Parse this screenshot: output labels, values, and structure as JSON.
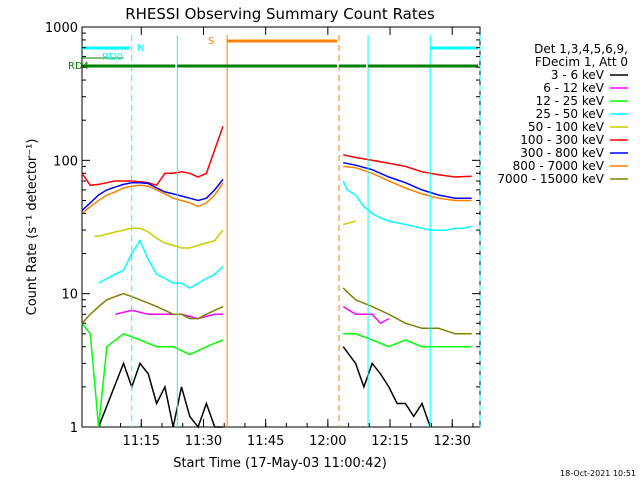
{
  "chart_data": {
    "type": "line",
    "title": "RHESSI Observing Summary Count Rates",
    "xlabel": "Start Time (17-May-03 11:00:42)",
    "ylabel": "Count Rate (s⁻¹ detector⁻¹)",
    "yscale": "log",
    "ylim": [
      1,
      1000
    ],
    "y_ticks": [
      "1",
      "10",
      "100",
      "1000"
    ],
    "xlim_minutes": [
      0,
      96
    ],
    "x_ticks": [
      "11:15",
      "11:30",
      "11:45",
      "12:00",
      "12:15",
      "12:30"
    ],
    "legend_header": [
      "Det 1,3,4,5,6,9,",
      "FDecim 1, Att 0"
    ],
    "legend_position": "right",
    "footer_date": "18-Oct-2021 10:51",
    "data_gap_minutes": [
      34.5,
      62.5
    ],
    "series": [
      {
        "name": "3 - 6 keV",
        "color": "#000000",
        "minutes": [
          4,
          10,
          12,
          14,
          16,
          18,
          20,
          22,
          24,
          26,
          28,
          30,
          32,
          34,
          63,
          66,
          68,
          70,
          72,
          74,
          76,
          78,
          80,
          82,
          84
        ],
        "values": [
          1,
          3,
          2,
          3,
          2.5,
          1.5,
          2,
          1,
          2,
          1.2,
          1,
          1.5,
          1,
          1,
          4,
          3,
          2,
          3,
          2.5,
          2,
          1.5,
          1.5,
          1.2,
          1.5,
          1
        ]
      },
      {
        "name": "6 - 12 keV",
        "color": "#ff00ff",
        "minutes": [
          0,
          5,
          8,
          12,
          16,
          20,
          24,
          28,
          32,
          34,
          63,
          66,
          70,
          72,
          74
        ],
        "values": [
          null,
          null,
          7,
          7.5,
          7,
          7,
          7,
          6.5,
          7,
          7,
          8,
          7,
          7,
          6,
          6.5
        ]
      },
      {
        "name": "12 - 25 keV",
        "color": "#00ff00",
        "minutes": [
          0,
          2,
          4,
          6,
          10,
          14,
          18,
          22,
          26,
          30,
          34,
          63,
          66,
          70,
          74,
          78,
          82,
          86,
          90,
          94
        ],
        "values": [
          6,
          5,
          1,
          4,
          5,
          4.5,
          4,
          4,
          3.5,
          4,
          4.5,
          5,
          5,
          4.5,
          4,
          4.5,
          4,
          4,
          4,
          4
        ]
      },
      {
        "name": "25 - 50 keV",
        "color": "#00ffff",
        "minutes": [
          0,
          2,
          4,
          6,
          8,
          10,
          12,
          14,
          16,
          18,
          20,
          22,
          24,
          26,
          28,
          30,
          32,
          34,
          63,
          64,
          66,
          68,
          70,
          72,
          74,
          76,
          78,
          80,
          82,
          84,
          86,
          88,
          90,
          92,
          94
        ],
        "values": [
          null,
          null,
          12,
          13,
          14,
          15,
          20,
          25,
          18,
          14,
          13,
          12,
          12,
          11,
          12,
          13,
          14,
          16,
          70,
          60,
          55,
          45,
          40,
          37,
          35,
          34,
          33,
          32,
          31,
          30,
          30,
          30,
          31,
          31,
          32
        ]
      },
      {
        "name": "50 - 100 keV",
        "color": "#cccc00",
        "minutes": [
          3,
          4,
          6,
          8,
          10,
          12,
          14,
          16,
          18,
          20,
          22,
          24,
          26,
          28,
          30,
          32,
          34,
          63,
          66,
          70,
          74,
          78,
          82,
          86,
          90,
          94
        ],
        "values": [
          27,
          27,
          28,
          29,
          30,
          31,
          31,
          29,
          26,
          24,
          23,
          22,
          22,
          23,
          24,
          25,
          30,
          33,
          35,
          null,
          null,
          null,
          null,
          null,
          null,
          null
        ]
      },
      {
        "name": "100 - 300 keV",
        "color": "#ff0000",
        "minutes": [
          0,
          2,
          4,
          6,
          8,
          10,
          12,
          14,
          16,
          18,
          20,
          22,
          24,
          26,
          28,
          30,
          32,
          34,
          63,
          66,
          70,
          74,
          78,
          82,
          86,
          90,
          94
        ],
        "values": [
          80,
          65,
          66,
          68,
          70,
          70,
          70,
          69,
          68,
          65,
          80,
          80,
          82,
          80,
          75,
          80,
          120,
          180,
          110,
          105,
          100,
          95,
          90,
          82,
          78,
          75,
          76
        ]
      },
      {
        "name": "300 - 800 keV",
        "color": "#0000ff",
        "minutes": [
          0,
          2,
          4,
          6,
          8,
          10,
          12,
          14,
          16,
          18,
          20,
          22,
          24,
          26,
          28,
          30,
          32,
          34,
          63,
          66,
          70,
          74,
          78,
          82,
          86,
          90,
          94
        ],
        "values": [
          42,
          48,
          55,
          60,
          63,
          66,
          68,
          68,
          67,
          62,
          58,
          56,
          54,
          52,
          50,
          52,
          60,
          72,
          96,
          92,
          85,
          75,
          68,
          60,
          55,
          52,
          52
        ]
      },
      {
        "name": "800 - 7000 keV",
        "color": "#ff8000",
        "minutes": [
          0,
          2,
          4,
          6,
          8,
          10,
          12,
          14,
          16,
          18,
          20,
          22,
          24,
          26,
          28,
          30,
          32,
          34,
          63,
          66,
          70,
          74,
          78,
          82,
          86,
          90,
          94
        ],
        "values": [
          40,
          45,
          50,
          55,
          58,
          62,
          64,
          65,
          64,
          60,
          56,
          52,
          50,
          48,
          45,
          48,
          55,
          68,
          90,
          88,
          80,
          70,
          62,
          56,
          52,
          50,
          50
        ]
      },
      {
        "name": "7000 - 15000 keV",
        "color": "#808000",
        "minutes": [
          0,
          2,
          4,
          6,
          8,
          10,
          12,
          14,
          16,
          18,
          20,
          22,
          24,
          26,
          28,
          30,
          32,
          34,
          63,
          66,
          70,
          74,
          78,
          82,
          86,
          90,
          94
        ],
        "values": [
          6,
          7,
          8,
          9,
          9.5,
          10,
          9.5,
          9,
          8.5,
          8,
          7.5,
          7,
          7,
          6.5,
          6.5,
          7,
          7.5,
          8,
          11,
          9,
          8,
          7,
          6,
          5.5,
          5.5,
          5,
          5
        ]
      }
    ],
    "annotations": [
      {
        "label": "RD0",
        "minute": 3,
        "color": "#00ffff"
      },
      {
        "label": "RD4",
        "minute": 0,
        "color": "#008000"
      },
      {
        "label": "N",
        "minute": 12,
        "color": "#00ffff"
      },
      {
        "label": "S",
        "minute": 35,
        "color": "#ff8000"
      }
    ],
    "state_bars": [
      {
        "name": "night",
        "color": "#00ffff",
        "segments": [
          [
            0,
            12
          ],
          [
            84,
            96
          ]
        ]
      },
      {
        "name": "saa",
        "color": "#ff8000",
        "segments": [
          [
            35,
            62
          ]
        ]
      },
      {
        "name": "rd4",
        "color": "#008000",
        "segments": [
          [
            0,
            23
          ],
          [
            23,
            62
          ],
          [
            62,
            69
          ],
          [
            69,
            96
          ]
        ]
      }
    ],
    "vlines": [
      {
        "minute": 12,
        "color": "#00ffff",
        "style": "dashed"
      },
      {
        "minute": 23,
        "color": "#00ffff",
        "style": "solid"
      },
      {
        "minute": 35,
        "color": "#ff8000",
        "style": "solid"
      },
      {
        "minute": 62,
        "color": "#ff8000",
        "style": "dashed"
      },
      {
        "minute": 69,
        "color": "#00ffff",
        "style": "solid"
      },
      {
        "minute": 84,
        "color": "#00ffff",
        "style": "solid"
      },
      {
        "minute": 96,
        "color": "#00ffff",
        "style": "dashed"
      }
    ]
  }
}
